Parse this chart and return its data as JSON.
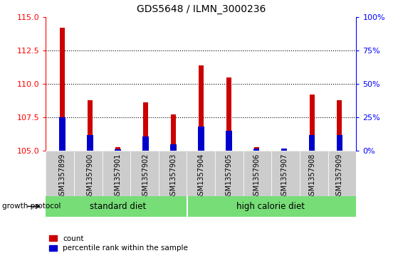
{
  "title": "GDS5648 / ILMN_3000236",
  "samples": [
    "GSM1357899",
    "GSM1357900",
    "GSM1357901",
    "GSM1357902",
    "GSM1357903",
    "GSM1357904",
    "GSM1357905",
    "GSM1357906",
    "GSM1357907",
    "GSM1357908",
    "GSM1357909"
  ],
  "count_values": [
    114.2,
    108.8,
    105.3,
    108.6,
    107.7,
    111.4,
    110.5,
    105.3,
    105.2,
    109.2,
    108.8
  ],
  "percentile_values": [
    107.5,
    106.2,
    105.15,
    106.1,
    105.5,
    106.8,
    106.5,
    105.2,
    105.2,
    106.2,
    106.2
  ],
  "ylim_left": [
    105,
    115
  ],
  "yticks_left": [
    105,
    107.5,
    110,
    112.5,
    115
  ],
  "ylim_right": [
    0,
    100
  ],
  "yticks_right": [
    0,
    25,
    50,
    75,
    100
  ],
  "ytick_labels_right": [
    "0%",
    "25%",
    "50%",
    "75%",
    "100%"
  ],
  "bar_width": 0.18,
  "percentile_bar_width": 0.22,
  "count_color": "#cc0000",
  "percentile_color": "#0000cc",
  "grid_color": "black",
  "diet_labels": [
    "standard diet",
    "high calorie diet"
  ],
  "standard_diet_indices": [
    0,
    1,
    2,
    3,
    4
  ],
  "high_calorie_indices": [
    5,
    6,
    7,
    8,
    9,
    10
  ],
  "group_label": "growth protocol",
  "legend_items": [
    "count",
    "percentile rank within the sample"
  ],
  "base_value": 105,
  "cell_bg_color": "#cccccc",
  "cell_divider_color": "#ffffff",
  "green_color": "#77dd77"
}
